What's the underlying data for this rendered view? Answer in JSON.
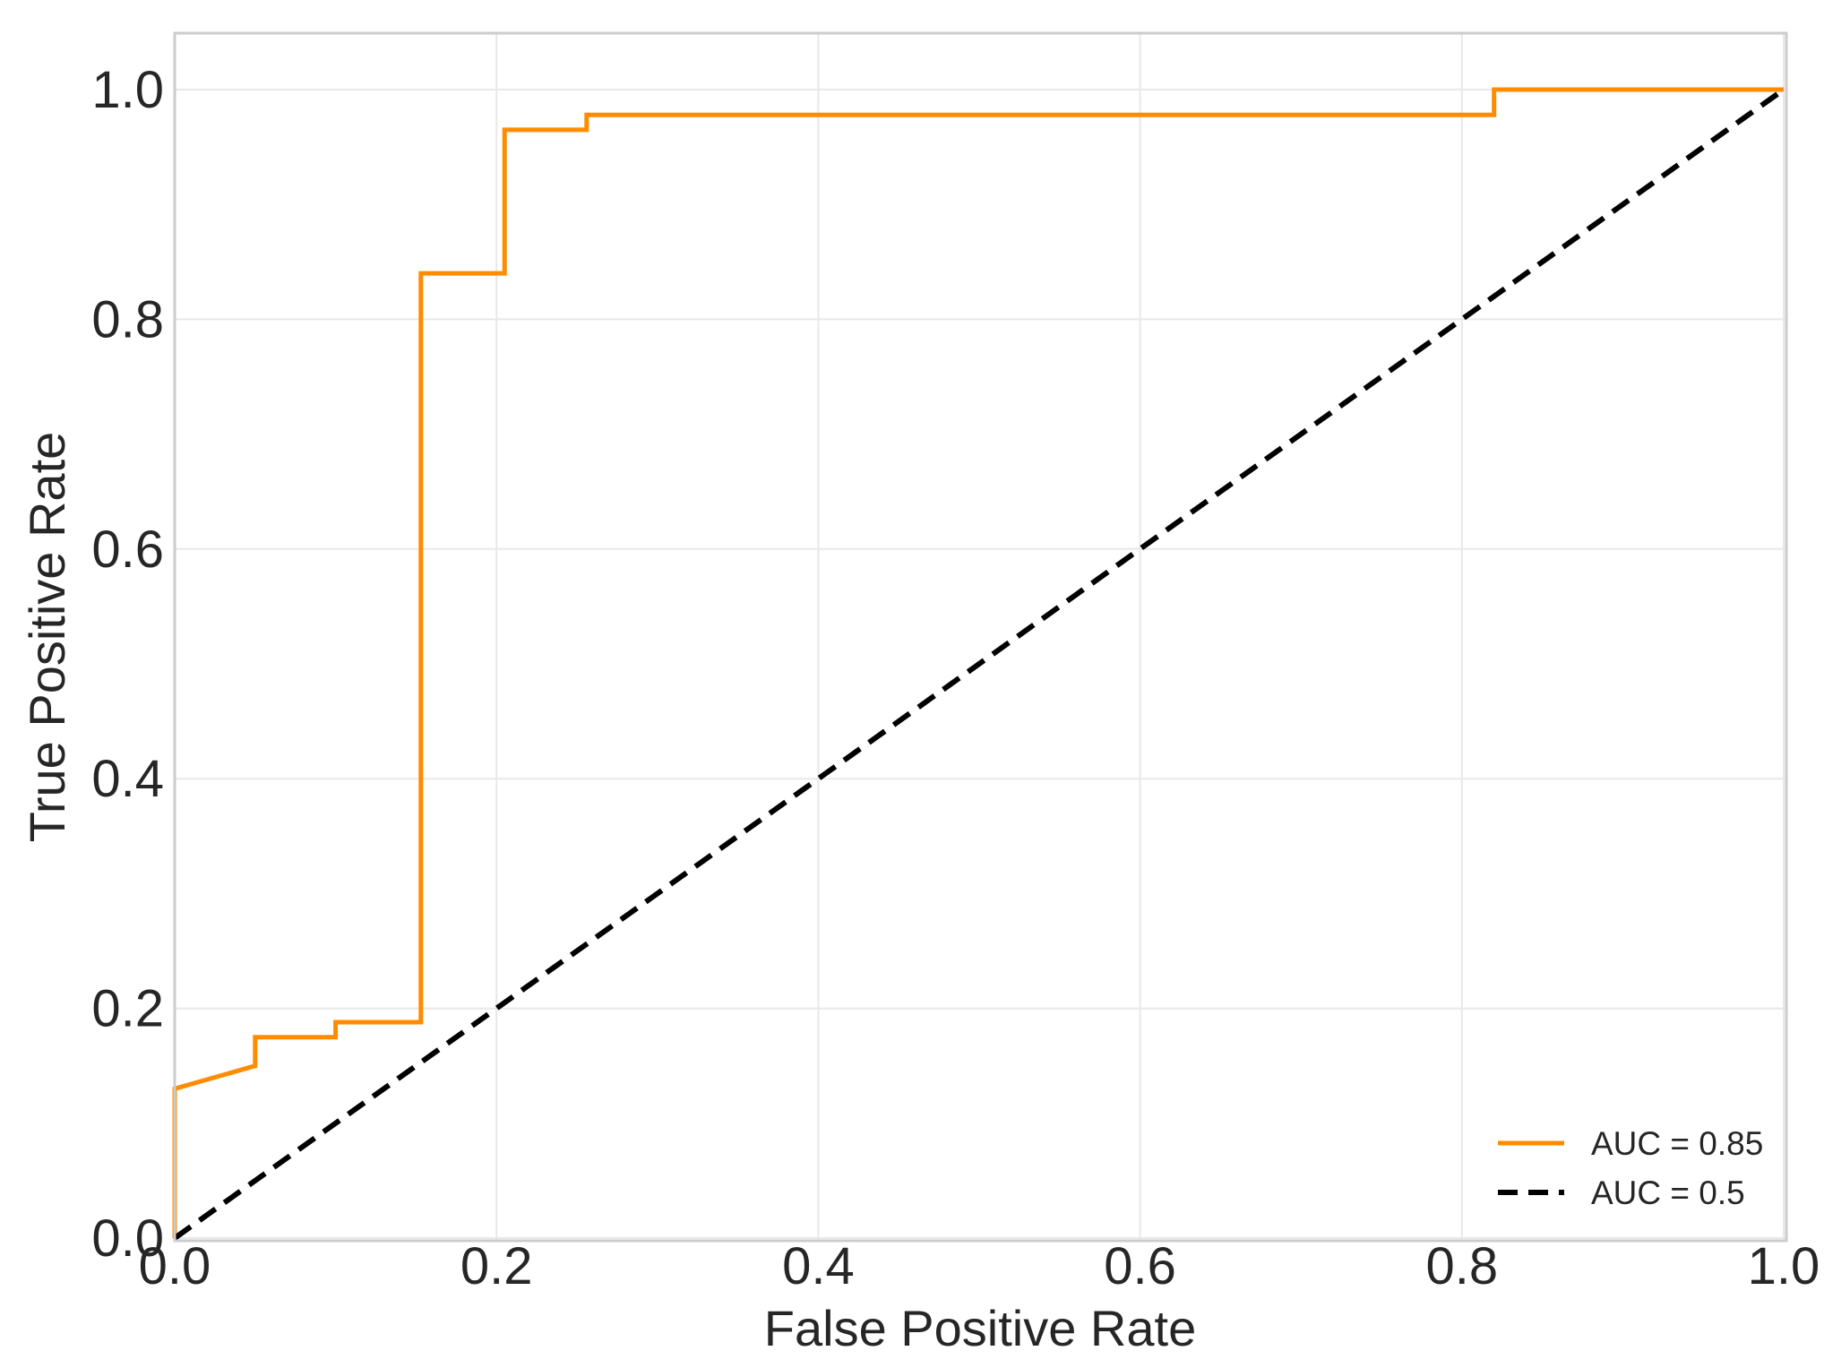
{
  "chart_data": {
    "type": "line",
    "title": "",
    "xlabel": "False Positive Rate",
    "ylabel": "True Positive Rate",
    "xlim": [
      0.0,
      1.0
    ],
    "ylim": [
      0.0,
      1.0
    ],
    "x_ticks": [
      "0.0",
      "0.2",
      "0.4",
      "0.6",
      "0.8",
      "1.0"
    ],
    "y_ticks": [
      "0.0",
      "0.2",
      "0.4",
      "0.6",
      "0.8",
      "1.0"
    ],
    "grid": true,
    "legend_position": "lower-right",
    "series": [
      {
        "name": "AUC = 0.85",
        "color": "#ff8c00",
        "style": "solid",
        "x": [
          0.0,
          0.0,
          0.05,
          0.05,
          0.1,
          0.1,
          0.153,
          0.153,
          0.205,
          0.205,
          0.256,
          0.256,
          0.82,
          0.82,
          1.0
        ],
        "y": [
          0.0,
          0.13,
          0.15,
          0.175,
          0.175,
          0.188,
          0.188,
          0.84,
          0.84,
          0.965,
          0.965,
          0.978,
          0.978,
          1.0,
          1.0
        ]
      },
      {
        "name": "AUC = 0.5",
        "color": "#000000",
        "style": "dashed",
        "x": [
          0.0,
          1.0
        ],
        "y": [
          0.0,
          1.0
        ]
      }
    ]
  }
}
